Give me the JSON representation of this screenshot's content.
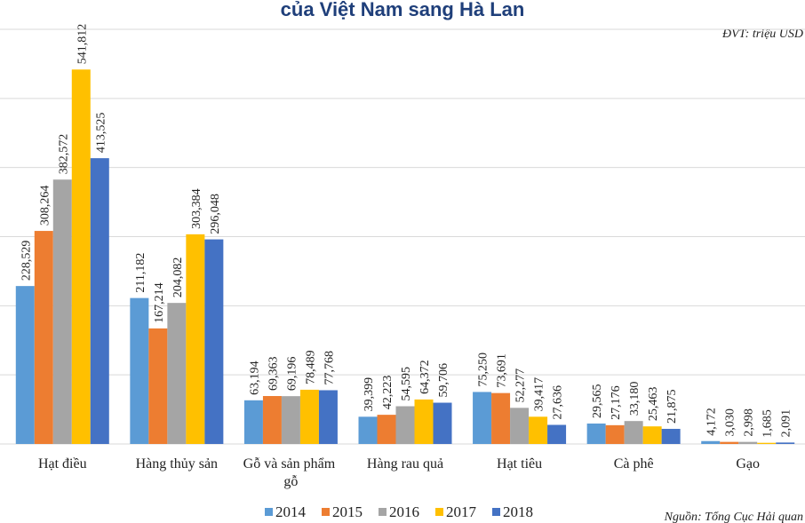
{
  "chart_data": {
    "type": "bar",
    "title": "của Việt Nam sang Hà Lan",
    "subtitle": "ĐVT: triệu USD",
    "source": "Nguồn: Tổng Cục Hải quan",
    "categories": [
      "Hạt điều",
      "Hàng thủy sản",
      "Gỗ và sản phẩm gỗ",
      "Hàng rau quả",
      "Hạt tiêu",
      "Cà phê",
      "Gạo"
    ],
    "series": [
      {
        "name": "2014",
        "color": "#5b9bd5",
        "values": [
          228.529,
          211.182,
          63.194,
          39.399,
          75.25,
          29.565,
          4.172
        ],
        "value_labels": [
          "228,529",
          "211,182",
          "63,194",
          "39,399",
          "75,250",
          "29,565",
          "4,172"
        ]
      },
      {
        "name": "2015",
        "color": "#ed7d31",
        "values": [
          308.264,
          167.214,
          69.363,
          42.223,
          73.691,
          27.176,
          3.03
        ],
        "value_labels": [
          "308,264",
          "167,214",
          "69,363",
          "42,223",
          "73,691",
          "27,176",
          "3,030"
        ]
      },
      {
        "name": "2016",
        "color": "#a5a5a5",
        "values": [
          382.572,
          204.082,
          69.196,
          54.595,
          52.277,
          33.18,
          2.998
        ],
        "value_labels": [
          "382,572",
          "204,082",
          "69,196",
          "54,595",
          "52,277",
          "33,180",
          "2,998"
        ]
      },
      {
        "name": "2017",
        "color": "#ffc000",
        "values": [
          541.812,
          303.384,
          78.489,
          64.372,
          39.417,
          25.463,
          1.685
        ],
        "value_labels": [
          "541,812",
          "303,384",
          "78,489",
          "64,372",
          "39,417",
          "25,463",
          "1,685"
        ]
      },
      {
        "name": "2018",
        "color": "#4472c4",
        "values": [
          413.525,
          296.048,
          77.768,
          59.706,
          27.636,
          21.875,
          2.091
        ],
        "value_labels": [
          "413,525",
          "296,048",
          "77,768",
          "59,706",
          "27,636",
          "21,875",
          "2,091"
        ]
      }
    ],
    "ylim": [
      0,
      600
    ],
    "yticks": [
      0,
      100,
      200,
      300,
      400,
      500,
      600
    ],
    "grid": true,
    "legend": "bottom"
  }
}
